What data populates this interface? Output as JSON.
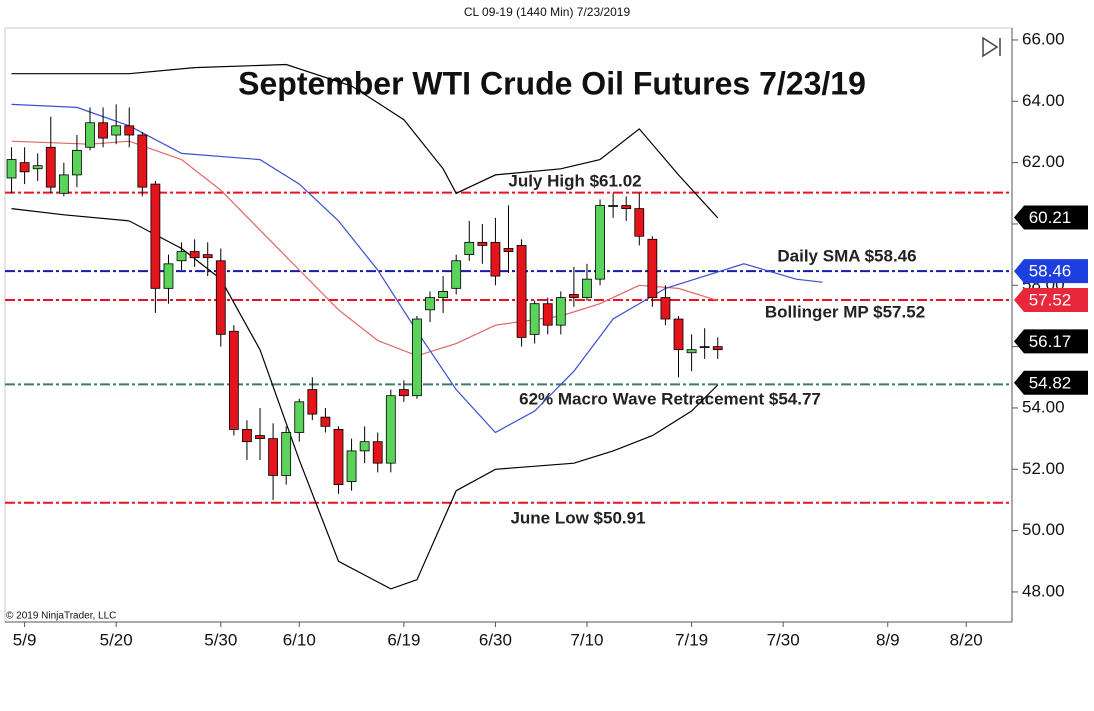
{
  "chart_data": {
    "type": "candlestick",
    "header": "CL 09-19 (1440 Min)  7/23/2019",
    "title": "September WTI Crude Oil Futures 7/23/19",
    "copyright": "© 2019 NinjaTrader, LLC",
    "categories": [
      null,
      "5/9",
      null,
      null,
      null,
      null,
      null,
      null,
      "5/20",
      null,
      null,
      null,
      null,
      null,
      null,
      null,
      "5/30",
      null,
      null,
      null,
      null,
      null,
      "6/10",
      null,
      null,
      null,
      null,
      null,
      null,
      null,
      "6/19",
      null,
      null,
      null,
      null,
      null,
      null,
      "6/30",
      null,
      null,
      null,
      null,
      null,
      null,
      "7/10",
      null,
      null,
      null,
      null,
      null,
      null,
      null,
      "7/19",
      null,
      null,
      null,
      null,
      null,
      null,
      "7/30",
      null,
      null,
      null,
      null,
      null,
      null,
      null,
      "8/9",
      null,
      null,
      null,
      null,
      null,
      "8/20",
      null,
      null,
      null
    ],
    "open": [
      61.5,
      62.0,
      61.8,
      62.5,
      61.0,
      61.6,
      62.5,
      63.3,
      62.9,
      63.2,
      62.9,
      61.3,
      57.9,
      58.8,
      59.1,
      59.0,
      58.8,
      56.5,
      53.3,
      53.1,
      53.0,
      51.8,
      53.2,
      54.6,
      53.7,
      53.3,
      51.6,
      52.6,
      52.9,
      52.2,
      54.6,
      54.4,
      57.2,
      57.6,
      57.9,
      59.0,
      59.4,
      59.4,
      59.2,
      59.3,
      56.4,
      57.4,
      56.7,
      57.7,
      57.6,
      58.2,
      60.6,
      60.6,
      60.5,
      59.5,
      57.6,
      56.9,
      55.8,
      56.0,
      56.0,
      null,
      null,
      null,
      null,
      null,
      null,
      null,
      null,
      null,
      null,
      null,
      null,
      null,
      null,
      null,
      null,
      null,
      null,
      null,
      null,
      null,
      null
    ],
    "high": [
      62.5,
      62.5,
      62.3,
      63.5,
      62.0,
      62.9,
      63.8,
      63.8,
      63.9,
      63.8,
      63.0,
      61.4,
      59.0,
      59.4,
      59.5,
      59.4,
      59.2,
      56.7,
      53.6,
      54.0,
      53.5,
      53.4,
      54.3,
      55.0,
      54.0,
      53.4,
      53.0,
      53.4,
      53.2,
      54.6,
      54.9,
      57.0,
      57.8,
      58.3,
      59.0,
      60.1,
      60.0,
      60.2,
      60.6,
      59.5,
      57.5,
      57.6,
      57.8,
      58.6,
      58.7,
      60.8,
      61.0,
      60.9,
      61.0,
      59.6,
      58.0,
      57.0,
      56.4,
      56.6,
      56.3,
      null,
      null,
      null,
      null,
      null,
      null,
      null,
      null,
      null,
      null,
      null,
      null,
      null,
      null,
      null,
      null,
      null,
      null,
      null,
      null,
      null,
      null
    ],
    "low": [
      61.0,
      61.3,
      61.4,
      61.0,
      60.9,
      61.2,
      62.4,
      62.5,
      62.6,
      62.5,
      60.9,
      57.1,
      57.4,
      58.5,
      58.6,
      58.3,
      56.0,
      53.1,
      52.3,
      52.3,
      51.0,
      51.5,
      52.9,
      53.6,
      53.2,
      51.2,
      51.3,
      52.2,
      51.9,
      51.9,
      54.2,
      54.3,
      56.8,
      57.1,
      57.7,
      58.8,
      58.7,
      58.0,
      58.4,
      56.0,
      56.1,
      56.4,
      56.4,
      57.3,
      57.5,
      58.0,
      60.2,
      60.1,
      59.3,
      57.3,
      56.7,
      55.0,
      55.2,
      55.6,
      55.6,
      null,
      null,
      null,
      null,
      null,
      null,
      null,
      null,
      null,
      null,
      null,
      null,
      null,
      null,
      null,
      null,
      null,
      null,
      null,
      null,
      null,
      null
    ],
    "close": [
      62.1,
      61.7,
      61.9,
      61.2,
      61.6,
      62.4,
      63.3,
      62.8,
      63.2,
      62.9,
      61.2,
      57.9,
      58.7,
      59.1,
      58.9,
      58.9,
      56.4,
      53.3,
      52.9,
      53.0,
      51.8,
      53.2,
      54.2,
      53.8,
      53.4,
      51.5,
      52.6,
      52.9,
      52.2,
      54.4,
      54.4,
      56.9,
      57.6,
      57.8,
      58.8,
      59.4,
      59.3,
      58.3,
      59.1,
      56.3,
      57.4,
      56.7,
      57.6,
      57.6,
      58.2,
      60.6,
      60.6,
      60.5,
      59.6,
      57.6,
      56.9,
      55.9,
      55.9,
      56.0,
      55.9,
      null,
      null,
      null,
      null,
      null,
      null,
      null,
      null,
      null,
      null,
      null,
      null,
      null,
      null,
      null,
      null,
      null,
      null,
      null,
      null,
      null,
      null
    ],
    "up_color": "#5bd35b",
    "down_color": "#e3141b",
    "overlays": [
      {
        "color": "#000000",
        "x": [
          0,
          9,
          14,
          21,
          26,
          30,
          33,
          34,
          37,
          42,
          45,
          48,
          51,
          54
        ],
        "values": [
          64.9,
          64.9,
          65.1,
          65.2,
          64.5,
          63.4,
          61.8,
          61.0,
          61.6,
          61.8,
          62.1,
          63.1,
          61.6,
          60.2
        ]
      },
      {
        "color": "#e06565",
        "x": [
          0,
          6,
          9,
          13,
          16,
          19,
          22,
          25,
          28,
          31,
          34,
          37,
          42,
          45,
          48,
          51,
          54
        ],
        "values": [
          62.7,
          62.6,
          62.7,
          62.1,
          61.1,
          59.8,
          58.5,
          57.2,
          56.2,
          55.7,
          56.1,
          56.7,
          57.0,
          57.4,
          58.0,
          57.9,
          57.5
        ]
      },
      {
        "color": "#000000",
        "x": [
          0,
          4,
          9,
          13,
          16,
          19,
          22,
          25,
          29,
          31,
          34,
          37,
          43,
          46,
          49,
          52,
          54
        ],
        "values": [
          60.5,
          60.3,
          60.1,
          59.2,
          58.2,
          55.9,
          52.3,
          49.0,
          48.1,
          48.4,
          51.3,
          52.0,
          52.2,
          52.6,
          53.1,
          53.9,
          54.75
        ]
      },
      {
        "color": "#3a4fd0",
        "x": [
          0,
          5,
          9,
          13,
          19,
          22,
          25,
          28,
          31,
          34,
          37,
          40,
          43,
          46,
          50,
          53,
          56,
          60,
          62
        ],
        "values": [
          63.9,
          63.8,
          63.2,
          62.3,
          62.1,
          61.3,
          60.1,
          58.5,
          56.5,
          54.6,
          53.2,
          53.9,
          55.2,
          56.9,
          57.9,
          58.3,
          58.7,
          58.2,
          58.1
        ]
      }
    ],
    "levels": [
      {
        "value": 61.02,
        "label": "July High $61.02",
        "color": "#e8141e"
      },
      {
        "value": 58.46,
        "label": "Daily SMA $58.46",
        "color": "#1a1aa8"
      },
      {
        "value": 57.52,
        "label": "Bollinger MP $57.52",
        "color": "#e8141e"
      },
      {
        "value": 54.77,
        "label": "62% Macro Wave Retracement $54.77",
        "color": "#3c7c6c"
      },
      {
        "value": 50.91,
        "label": "June Low $50.91",
        "color": "#e8141e"
      }
    ],
    "price_markers": [
      {
        "value": 60.21,
        "color": "#000000"
      },
      {
        "value": 58.46,
        "color": "#1d3fe0"
      },
      {
        "value": 57.52,
        "color": "#e8283a"
      },
      {
        "value": 56.17,
        "color": "#000000"
      },
      {
        "value": 54.82,
        "color": "#000000"
      }
    ],
    "ylim": [
      47.02,
      66.39
    ],
    "yticks": [
      {
        "value": 48,
        "label": "48.00"
      },
      {
        "value": 50,
        "label": "50.00"
      },
      {
        "value": 52,
        "label": "52.00"
      },
      {
        "value": 54,
        "label": "54.00"
      },
      {
        "value": 56,
        "label": "56.00"
      },
      {
        "value": 58,
        "label": "58.00"
      },
      {
        "value": 60,
        "label": "60.00"
      },
      {
        "value": 62,
        "label": "62.00"
      },
      {
        "value": 64,
        "label": "64.00"
      },
      {
        "value": 66,
        "label": "66.00"
      }
    ]
  }
}
